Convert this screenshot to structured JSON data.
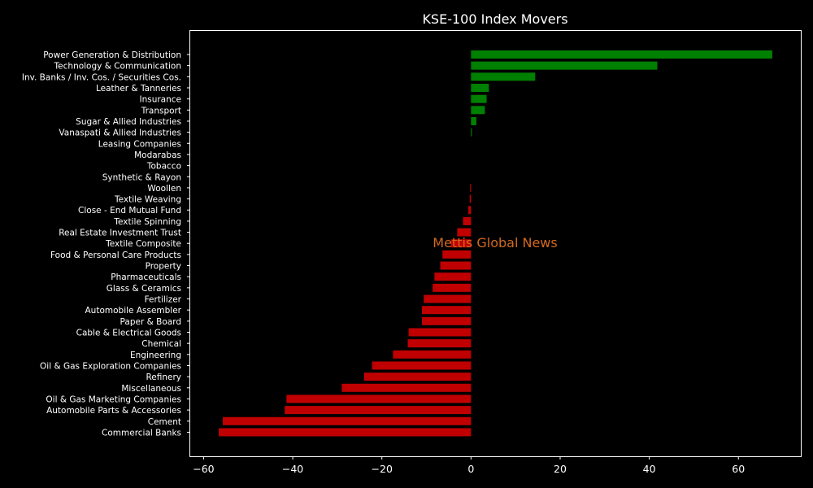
{
  "chart_data": {
    "type": "bar",
    "orientation": "horizontal",
    "title": "KSE-100 Index Movers",
    "xlabel": "",
    "ylabel": "",
    "xlim": [
      -63,
      74
    ],
    "xticks": [
      -60,
      -40,
      -20,
      0,
      20,
      40,
      60
    ],
    "xtick_labels": [
      "−60",
      "−40",
      "−20",
      "0",
      "20",
      "40",
      "60"
    ],
    "watermark": "Mettis Global News",
    "colors": {
      "positive": "#008000",
      "negative": "#c00000",
      "watermark": "#d2691e",
      "background": "#000000",
      "text": "#ffffff"
    },
    "categories": [
      "Power Generation & Distribution",
      "Technology & Communication",
      "Inv. Banks / Inv. Cos. / Securities Cos.",
      "Leather & Tanneries",
      "Insurance",
      "Transport",
      "Sugar & Allied Industries",
      "Vanaspati & Allied Industries",
      "Leasing Companies",
      "Modarabas",
      "Tobacco",
      "Synthetic & Rayon",
      "Woollen",
      "Textile Weaving",
      "Close - End Mutual Fund",
      "Textile Spinning",
      "Real Estate Investment Trust",
      "Textile Composite",
      "Food & Personal Care Products",
      "Property",
      "Pharmaceuticals",
      "Glass & Ceramics",
      "Fertilizer",
      "Automobile Assembler",
      "Paper & Board",
      "Cable & Electrical Goods",
      "Chemical",
      "Engineering",
      "Oil & Gas Exploration Companies",
      "Refinery",
      "Miscellaneous",
      "Oil & Gas Marketing Companies",
      "Automobile Parts & Accessories",
      "Cement",
      "Commercial Banks"
    ],
    "values": [
      67.6,
      41.8,
      14.4,
      4.0,
      3.5,
      3.1,
      1.2,
      0.2,
      0,
      0,
      0,
      0,
      -0.2,
      -0.3,
      -0.6,
      -1.8,
      -3.1,
      -4.5,
      -6.4,
      -6.9,
      -8.2,
      -8.6,
      -10.6,
      -11.0,
      -11.0,
      -14.0,
      -14.2,
      -17.5,
      -22.2,
      -24.0,
      -29.0,
      -41.4,
      -41.8,
      -55.7,
      -56.6
    ]
  }
}
